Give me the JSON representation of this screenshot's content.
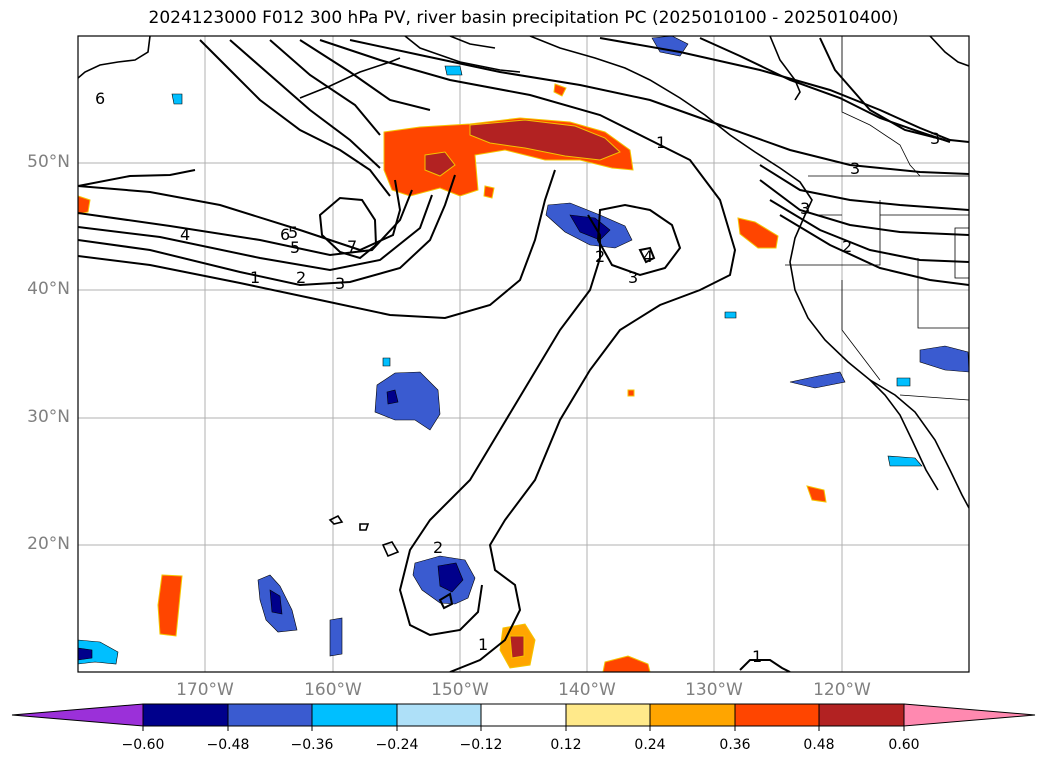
{
  "title": "2024123000 F012 300 hPa PV, river basin precipitation PC (2025010100 - 2025010400)",
  "lat_labels": [
    "50°N",
    "40°N",
    "30°N",
    "20°N"
  ],
  "lon_labels": [
    "170°W",
    "160°W",
    "150°W",
    "140°W",
    "130°W",
    "120°W"
  ],
  "contour_labels": [
    "6",
    "5",
    "4",
    "6",
    "5",
    "7",
    "1",
    "2",
    "3",
    "1",
    "2",
    "4",
    "3",
    "2",
    "3",
    "3",
    "3",
    "2",
    "1",
    "1"
  ],
  "colorbar": {
    "ticks": [
      "−0.60",
      "−0.48",
      "−0.36",
      "−0.24",
      "−0.12",
      "0.12",
      "0.24",
      "0.36",
      "0.48",
      "0.60"
    ],
    "colors": [
      "#9b30d9",
      "#00008b",
      "#3a5bd0",
      "#00bfff",
      "#aee0f8",
      "#ffffff",
      "#ffe98a",
      "#ffa500",
      "#ff4500",
      "#b22222",
      "#ff89b0"
    ]
  }
}
